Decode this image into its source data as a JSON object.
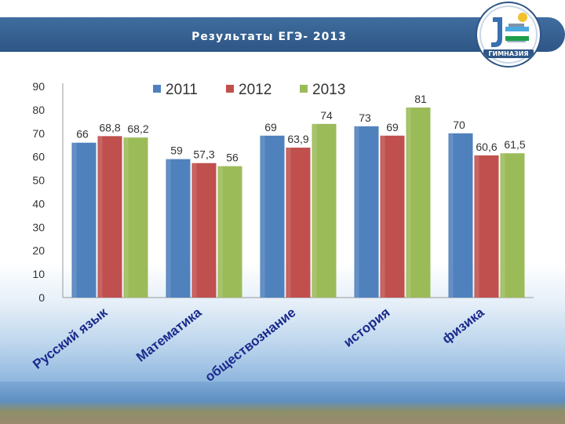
{
  "slide": {
    "title": "Результаты ЕГЭ- 2013",
    "logo_icon": "gymnasium-logo-icon",
    "logo_text": "ГИМНАЗИЯ"
  },
  "colors": {
    "2011": "#4f81bd",
    "2012": "#c0504d",
    "2013": "#9bbb59"
  },
  "chart_data": {
    "type": "bar",
    "title": "Результаты ЕГЭ- 2013",
    "categories": [
      "Русский язык",
      "Математика",
      "обществознание",
      "история",
      "физика"
    ],
    "series": [
      {
        "name": "2011",
        "values": [
          66,
          59,
          69,
          73,
          70
        ],
        "labels": [
          "66",
          "59",
          "69",
          "73",
          "70"
        ]
      },
      {
        "name": "2012",
        "values": [
          68.8,
          57.3,
          63.9,
          69,
          60.6
        ],
        "labels": [
          "68,8",
          "57,3",
          "63,9",
          "69",
          "60,6"
        ]
      },
      {
        "name": "2013",
        "values": [
          68.2,
          56,
          74,
          81,
          61.5
        ],
        "labels": [
          "68,2",
          "56",
          "74",
          "81",
          "61,5"
        ]
      }
    ],
    "ylim": [
      0,
      90
    ],
    "yticks": [
      "0",
      "10",
      "20",
      "30",
      "40",
      "50",
      "60",
      "70",
      "80",
      "90"
    ],
    "legend": "top",
    "xlabel": "",
    "ylabel": ""
  }
}
